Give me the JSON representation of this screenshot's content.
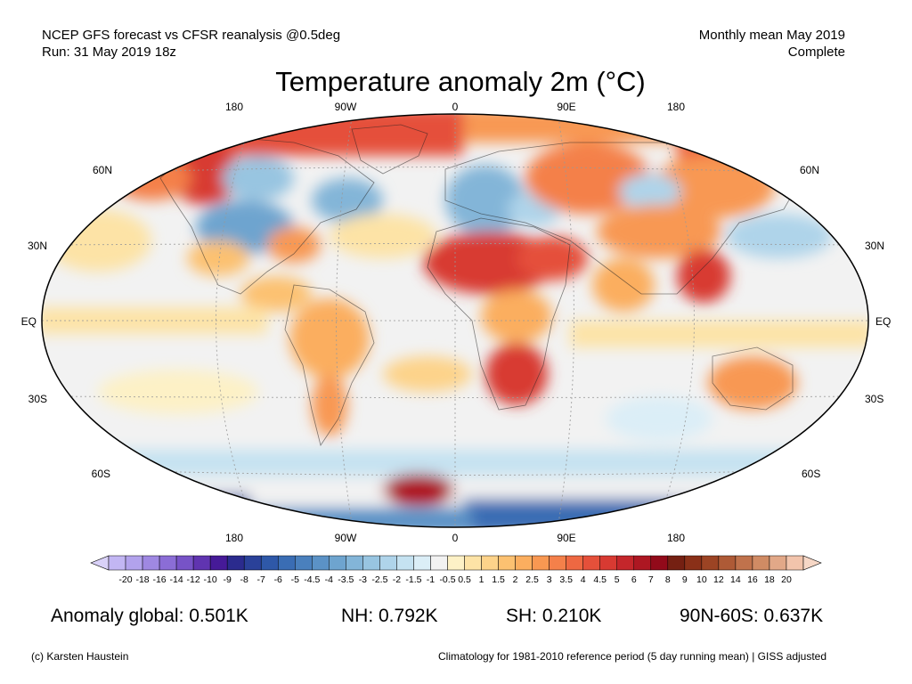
{
  "header": {
    "source_line": "NCEP GFS forecast vs CFSR reanalysis @0.5deg",
    "run_line": "Run: 31 May 2019 18z",
    "period_line": "Monthly mean May 2019",
    "status_line": "Complete"
  },
  "title": "Temperature anomaly 2m (°C)",
  "axes": {
    "longitude_labels": [
      "180",
      "90W",
      "0",
      "90E",
      "180"
    ],
    "latitude_labels": [
      "60N",
      "30N",
      "EQ",
      "30S",
      "60S"
    ]
  },
  "colorbar": {
    "labels": [
      "-20",
      "-18",
      "-16",
      "-14",
      "-12",
      "-10",
      "-9",
      "-8",
      "-7",
      "-6",
      "-5",
      "-4.5",
      "-4",
      "-3.5",
      "-3",
      "-2.5",
      "-2",
      "-1.5",
      "-1",
      "-0.5",
      "0.5",
      "1",
      "1.5",
      "2",
      "2.5",
      "3",
      "3.5",
      "4",
      "4.5",
      "5",
      "6",
      "7",
      "8",
      "9",
      "10",
      "12",
      "14",
      "16",
      "18",
      "20"
    ],
    "colors": [
      "#c2b6f3",
      "#b2a2ec",
      "#9f88e2",
      "#8b6dd6",
      "#7753c7",
      "#6034b0",
      "#461a98",
      "#2b2b8e",
      "#2a4199",
      "#2e58a8",
      "#3a6db4",
      "#4a80bd",
      "#5b92c6",
      "#6ea4cf",
      "#83b5d8",
      "#98c5e1",
      "#afd4ea",
      "#c5e2f1",
      "#dbeef7",
      "#f2f2f2",
      "#fdf1c6",
      "#fde3a6",
      "#fdd38a",
      "#fcc171",
      "#fbae5f",
      "#f89852",
      "#f4804a",
      "#ee6842",
      "#e5503a",
      "#d83a32",
      "#c4262b",
      "#ad1722",
      "#920a1a",
      "#752012",
      "#8a3018",
      "#9c4424",
      "#ae5a36",
      "#c0724c",
      "#d08b64",
      "#e2a888",
      "#f2c4ac"
    ],
    "under_color": "#d9d1f8",
    "over_color": "#f6d7c6"
  },
  "stats": {
    "global": "Anomaly global: 0.501K",
    "nh": "NH: 0.792K",
    "sh": "SH: 0.210K",
    "arctic": "90N-60S: 0.637K"
  },
  "footer": {
    "copyright": "(c) Karsten Haustein",
    "note": "Climatology for 1981-2010 reference period (5 day running mean) | GISS adjusted"
  }
}
